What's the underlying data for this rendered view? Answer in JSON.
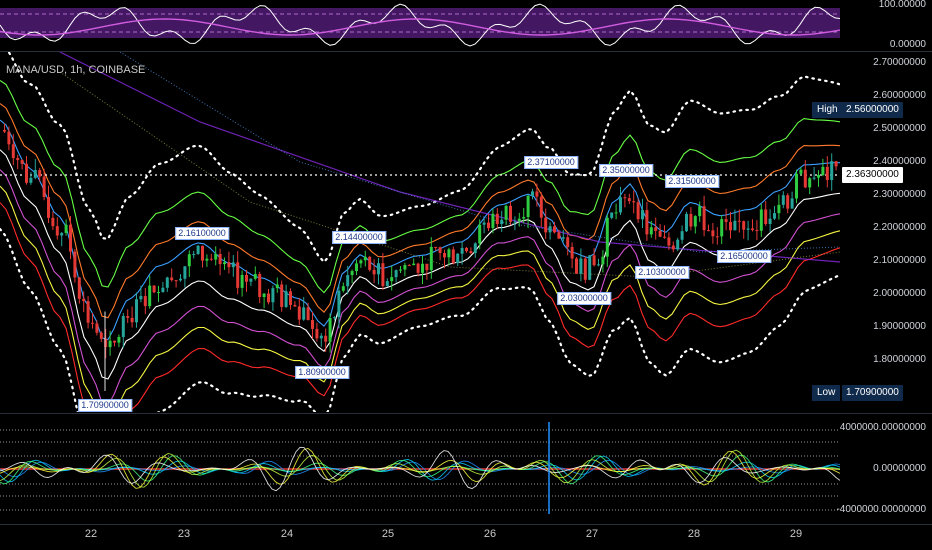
{
  "chart": {
    "symbol": "MANA/USD, 1h, COINBASE",
    "colors": {
      "background": "#000000",
      "candle_up": "#26a69a",
      "candle_up_alt": "#2ecc40",
      "candle_down": "#e53935",
      "last_price_line": "#ffffff",
      "rsi_band": "#7b1fa2",
      "high_low_tag": "#0f2a4a"
    }
  },
  "top_indicator": {
    "ticks": [
      "100.00000",
      "0.00000"
    ]
  },
  "price_axis": {
    "ticks": [
      "2.70000000",
      "2.60000000",
      "2.50000000",
      "2.40000000",
      "2.30000000",
      "2.20000000",
      "2.10000000",
      "2.00000000",
      "1.90000000",
      "1.80000000"
    ],
    "high_label": "High",
    "high_value": "2.56000000",
    "last_price": "2.36300000",
    "low_label": "Low",
    "low_value": "1.70900000"
  },
  "annotations": [
    {
      "text": "2.16100000"
    },
    {
      "text": "2.14400000"
    },
    {
      "text": "2.37100000"
    },
    {
      "text": "2.35000000"
    },
    {
      "text": "2.31500000"
    },
    {
      "text": "2.16500000"
    },
    {
      "text": "2.10300000"
    },
    {
      "text": "2.03000000"
    },
    {
      "text": "1.80900000"
    },
    {
      "text": "1.70900000"
    }
  ],
  "volume_axis": {
    "ticks": [
      "4000000.00000000",
      "0.00000000",
      "-4000000.00000000"
    ]
  },
  "time_axis": {
    "ticks": [
      "22",
      "23",
      "24",
      "25",
      "26",
      "27",
      "28",
      "29"
    ]
  },
  "chart_data": {
    "type": "candlestick",
    "x": [
      "22",
      "23",
      "24",
      "25",
      "26",
      "27",
      "28",
      "29"
    ],
    "series": [
      {
        "name": "MANA/USD",
        "close_approx": [
          1.95,
          2.12,
          1.85,
          2.1,
          2.28,
          2.1,
          2.22,
          2.36
        ]
      }
    ],
    "ylim": [
      1.7,
      2.72
    ]
  }
}
